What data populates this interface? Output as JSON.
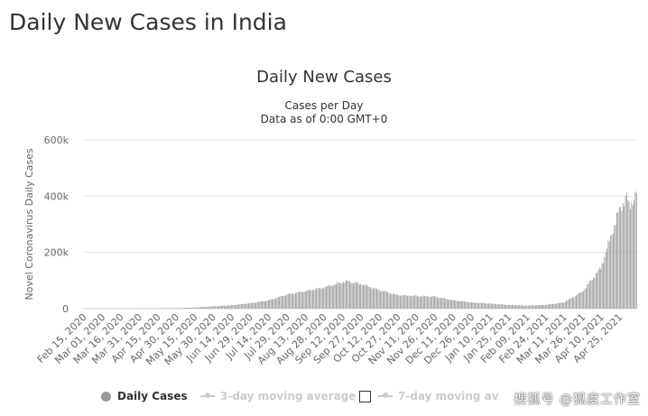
{
  "page": {
    "title": "Daily New Cases in India"
  },
  "chart_data": {
    "type": "bar",
    "title": "Daily New Cases",
    "subtitle_lines": [
      "Cases per Day",
      "Data as of 0:00 GMT+0"
    ],
    "ylabel": "Novel Coronavirus Daily Cases",
    "ylim": [
      0,
      600000
    ],
    "yticks": [
      0,
      200000,
      400000,
      600000
    ],
    "ytick_labels": [
      "0",
      "200k",
      "400k",
      "600k"
    ],
    "x_start": "2020-02-15",
    "x_end": "2021-05-09",
    "xtick_labels": [
      "Feb 15, 2020",
      "Mar 01, 2020",
      "Mar 16, 2020",
      "Mar 31, 2020",
      "Apr 15, 2020",
      "Apr 30, 2020",
      "May 15, 2020",
      "May 30, 2020",
      "Jun 14, 2020",
      "Jun 29, 2020",
      "Jul 14, 2020",
      "Jul 29, 2020",
      "Aug 13, 2020",
      "Aug 28, 2020",
      "Sep 12, 2020",
      "Sep 27, 2020",
      "Oct 12, 2020",
      "Oct 27, 2020",
      "Nov 11, 2020",
      "Nov 26, 2020",
      "Dec 11, 2020",
      "Dec 26, 2020",
      "Jan 10, 2021",
      "Jan 25, 2021",
      "Feb 09, 2021",
      "Feb 24, 2021",
      "Mar 11, 2021",
      "Mar 26, 2021",
      "Apr 10, 2021",
      "Apr 25, 2021"
    ],
    "series": [
      {
        "name": "Daily Cases",
        "color": "#999999",
        "points": [
          [
            "2020-02-15",
            0
          ],
          [
            "2020-03-15",
            100
          ],
          [
            "2020-03-31",
            1000
          ],
          [
            "2020-04-15",
            1000
          ],
          [
            "2020-04-30",
            2000
          ],
          [
            "2020-05-15",
            4000
          ],
          [
            "2020-05-30",
            8000
          ],
          [
            "2020-06-14",
            12000
          ],
          [
            "2020-06-29",
            19000
          ],
          [
            "2020-07-14",
            29000
          ],
          [
            "2020-07-29",
            50000
          ],
          [
            "2020-08-13",
            62000
          ],
          [
            "2020-08-28",
            75000
          ],
          [
            "2020-09-12",
            94000
          ],
          [
            "2020-09-16",
            97000
          ],
          [
            "2020-09-27",
            88000
          ],
          [
            "2020-10-12",
            66000
          ],
          [
            "2020-10-27",
            48000
          ],
          [
            "2020-11-11",
            45000
          ],
          [
            "2020-11-26",
            43000
          ],
          [
            "2020-12-11",
            30000
          ],
          [
            "2020-12-26",
            22000
          ],
          [
            "2021-01-10",
            18000
          ],
          [
            "2021-01-25",
            13000
          ],
          [
            "2021-02-09",
            11000
          ],
          [
            "2021-02-24",
            13000
          ],
          [
            "2021-03-11",
            22000
          ],
          [
            "2021-03-26",
            60000
          ],
          [
            "2021-04-10",
            145000
          ],
          [
            "2021-04-25",
            350000
          ],
          [
            "2021-05-01",
            400000
          ],
          [
            "2021-05-03",
            360000
          ],
          [
            "2021-05-09",
            412000
          ]
        ]
      }
    ],
    "legend": {
      "items": [
        {
          "label": "Daily Cases",
          "color": "#999999",
          "active": true
        },
        {
          "label": "3-day moving average",
          "color": "#cccccc",
          "active": false
        },
        {
          "label": "7-day moving av",
          "color": "#cccccc",
          "active": false
        }
      ],
      "placement": "bottom"
    },
    "grid": true
  },
  "watermark": "搜狐号 @狐度工作室"
}
